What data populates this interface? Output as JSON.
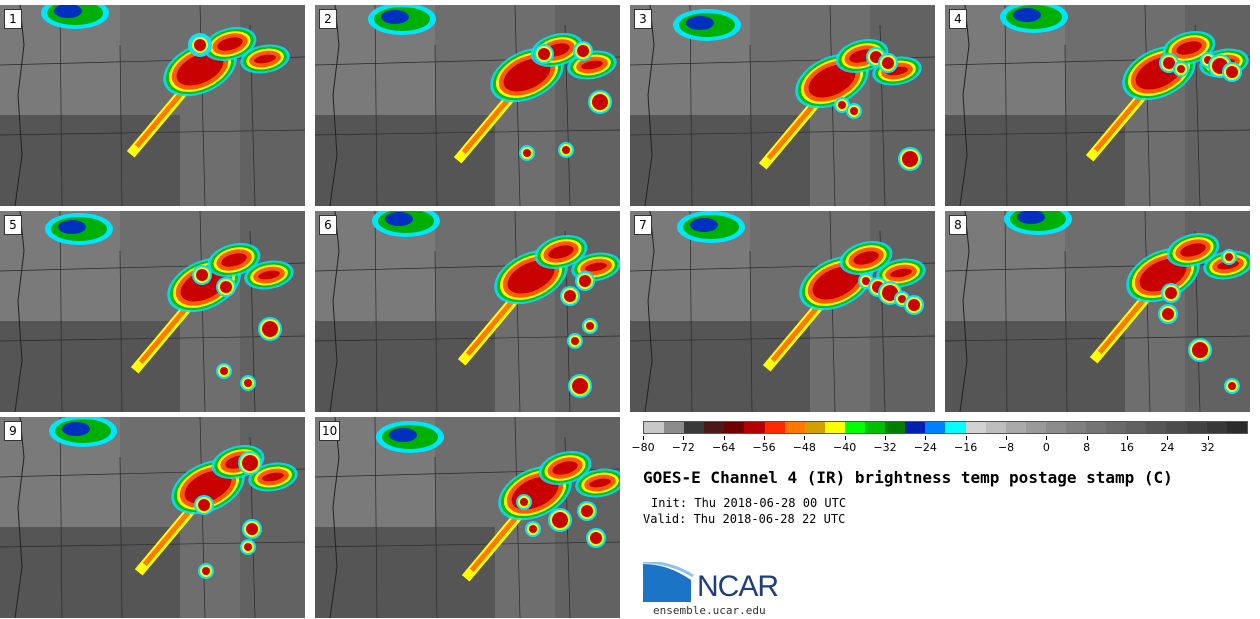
{
  "panels": [
    {
      "label": "1"
    },
    {
      "label": "2"
    },
    {
      "label": "3"
    },
    {
      "label": "4"
    },
    {
      "label": "5"
    },
    {
      "label": "6"
    },
    {
      "label": "7"
    },
    {
      "label": "8"
    },
    {
      "label": "9"
    },
    {
      "label": "10"
    }
  ],
  "colorbar": {
    "colors": [
      "#c8c8c8",
      "#8c8c8c",
      "#3a3a3a",
      "#4a1a1a",
      "#6e0000",
      "#b40000",
      "#ff2a00",
      "#ff7800",
      "#d4a000",
      "#ffff00",
      "#00ff00",
      "#00c000",
      "#008000",
      "#0020b0",
      "#0080ff",
      "#00ffff",
      "#d2d2d2",
      "#bebebe",
      "#aaaaaa",
      "#9a9a9a",
      "#8c8c8c",
      "#808080",
      "#747474",
      "#6a6a6a",
      "#606060",
      "#565656",
      "#4c4c4c",
      "#424242",
      "#383838",
      "#2c2c2c"
    ],
    "tick_labels": [
      "−80",
      "−72",
      "−64",
      "−56",
      "−48",
      "−40",
      "−32",
      "−24",
      "−16",
      "−8",
      "0",
      "8",
      "16",
      "24",
      "32"
    ]
  },
  "title": "GOES-E Channel 4 (IR) brightness temp postage stamp (C)",
  "init": "Init: Thu 2018-06-28 00 UTC",
  "valid": "Valid: Thu 2018-06-28 22 UTC",
  "logo": {
    "name": "NCAR",
    "url": "ensemble.ucar.edu"
  }
}
